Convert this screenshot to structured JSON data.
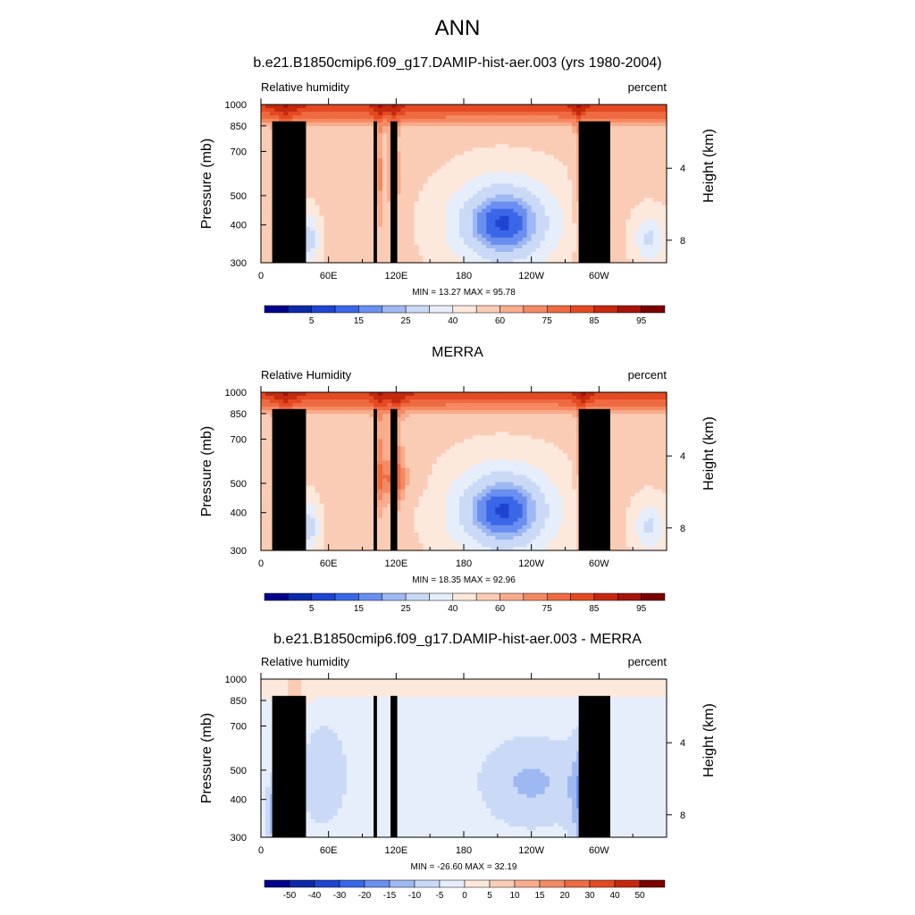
{
  "page": {
    "title": "ANN"
  },
  "chart_data": [
    {
      "type": "heatmap",
      "title": "b.e21.B1850cmip6.f09_g17.DAMIP-hist-aer.003 (yrs 1980-2004)",
      "field_label": "Relative humidity",
      "units": "percent",
      "ylabel": "Pressure (mb)",
      "ylabel_right": "Height (km)",
      "x_ticks": [
        "0",
        "60E",
        "120E",
        "180",
        "120W",
        "60W"
      ],
      "y_ticks": [
        "300",
        "400",
        "500",
        "700",
        "850",
        "1000"
      ],
      "height_ticks": [
        "8",
        "4"
      ],
      "min_max_text": "MIN =  13.27  MAX =  95.78",
      "min": 13.27,
      "max": 95.78,
      "colorbar_labels": [
        "5",
        "15",
        "25",
        "40",
        "60",
        "75",
        "85",
        "95"
      ],
      "colorbar_colors": [
        "#00008b",
        "#0c2aa8",
        "#1f45d0",
        "#3a67e8",
        "#6a8ff0",
        "#9eb8f2",
        "#cadaf6",
        "#e6eefb",
        "#fde8dc",
        "#fbccb5",
        "#f8ac8c",
        "#f48a64",
        "#ee6a40",
        "#e44a22",
        "#c6280f",
        "#a51408",
        "#7a0000"
      ]
    },
    {
      "type": "heatmap",
      "title": "MERRA",
      "field_label": "Relative Humidity",
      "units": "percent",
      "ylabel": "Pressure (mb)",
      "ylabel_right": "Height (km)",
      "x_ticks": [
        "0",
        "60E",
        "120E",
        "180",
        "120W",
        "60W"
      ],
      "y_ticks": [
        "300",
        "400",
        "500",
        "700",
        "850",
        "1000"
      ],
      "height_ticks": [
        "8",
        "4"
      ],
      "min_max_text": "MIN =  18.35  MAX =  92.96",
      "min": 18.35,
      "max": 92.96,
      "colorbar_labels": [
        "5",
        "15",
        "25",
        "40",
        "60",
        "75",
        "85",
        "95"
      ],
      "colorbar_colors": [
        "#00008b",
        "#0c2aa8",
        "#1f45d0",
        "#3a67e8",
        "#6a8ff0",
        "#9eb8f2",
        "#cadaf6",
        "#e6eefb",
        "#fde8dc",
        "#fbccb5",
        "#f8ac8c",
        "#f48a64",
        "#ee6a40",
        "#e44a22",
        "#c6280f",
        "#a51408",
        "#7a0000"
      ]
    },
    {
      "type": "heatmap",
      "title": "b.e21.B1850cmip6.f09_g17.DAMIP-hist-aer.003 - MERRA",
      "field_label": "Relative humidity",
      "units": "percent",
      "ylabel": "Pressure (mb)",
      "ylabel_right": "Height (km)",
      "x_ticks": [
        "0",
        "60E",
        "120E",
        "180",
        "120W",
        "60W"
      ],
      "y_ticks": [
        "300",
        "400",
        "500",
        "700",
        "850",
        "1000"
      ],
      "height_ticks": [
        "8",
        "4"
      ],
      "min_max_text": "MIN = -26.60  MAX =  32.19",
      "min": -26.6,
      "max": 32.19,
      "colorbar_labels": [
        "-50",
        "-40",
        "-30",
        "-20",
        "-15",
        "-10",
        "-5",
        "0",
        "5",
        "10",
        "15",
        "20",
        "30",
        "40",
        "50"
      ],
      "colorbar_colors": [
        "#00008b",
        "#0c2aa8",
        "#1f45d0",
        "#3a67e8",
        "#6a8ff0",
        "#9eb8f2",
        "#cadaf6",
        "#e6eefb",
        "#fde8dc",
        "#fbccb5",
        "#f8ac8c",
        "#f48a64",
        "#ee6a40",
        "#e44a22",
        "#c6280f",
        "#7a0000"
      ]
    }
  ]
}
